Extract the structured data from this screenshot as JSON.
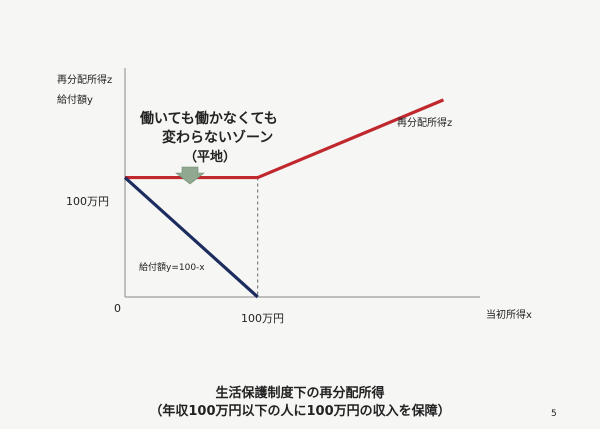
{
  "slide": {
    "y_label_line1": "再分配所得z",
    "y_label_line2": "給付額y",
    "x_label": "当初所得x",
    "y_tick": "100万円",
    "x_tick": "100万円",
    "origin": "0",
    "zone_line1": "働いても働かなくても",
    "zone_line2": "変わらないゾーン",
    "zone_line3": "（平地）",
    "red_line_label": "再分配所得z",
    "blue_line_label": "給付額y=100-x",
    "caption_line1": "生活保護制度下の再分配所得",
    "caption_line2": "（年収100万円以下の人に100万円の収入を保障）",
    "page_number": "5"
  },
  "colors": {
    "redistributed_income": "#c0282d",
    "benefit": "#1c2c5e",
    "axis": "#888888",
    "arrow": "#8fa88f"
  },
  "chart_data": {
    "type": "line",
    "x_unit": "万円",
    "y_unit": "万円",
    "xlim": [
      0,
      260
    ],
    "ylim": [
      0,
      185
    ],
    "series": [
      {
        "name": "再分配所得z",
        "x": [
          0,
          100,
          240
        ],
        "y": [
          100,
          100,
          165
        ]
      },
      {
        "name": "給付額y=100-x",
        "x": [
          0,
          100
        ],
        "y": [
          100,
          0
        ]
      }
    ],
    "reference_line": {
      "x": 100,
      "style": "dashed"
    },
    "annotation": "働いても働かなくても変わらないゾーン（平地）",
    "grid": false
  }
}
